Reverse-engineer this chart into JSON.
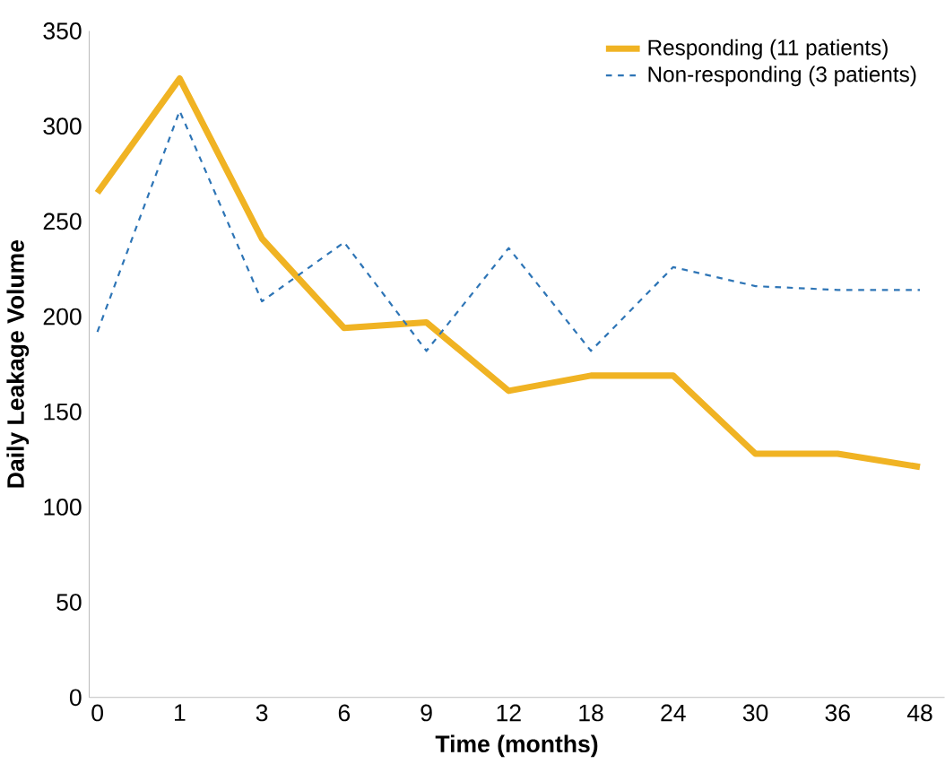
{
  "chart_data": {
    "type": "line",
    "xlabel": "Time (months)",
    "ylabel": "Daily Leakage Volume",
    "categories": [
      "0",
      "1",
      "3",
      "6",
      "9",
      "12",
      "18",
      "24",
      "30",
      "36",
      "48"
    ],
    "series": [
      {
        "name": "Responding (11 patients)",
        "color": "#f0b323",
        "line_style": "solid",
        "values": [
          265,
          325,
          241,
          194,
          197,
          161,
          169,
          169,
          128,
          128,
          121
        ]
      },
      {
        "name": "Non-responding (3 patients)",
        "color": "#2e75b6",
        "line_style": "dashed",
        "values": [
          192,
          308,
          208,
          239,
          182,
          236,
          182,
          226,
          216,
          214,
          214
        ]
      }
    ],
    "ylim": [
      0,
      350
    ],
    "yticks": [
      0,
      50,
      100,
      150,
      200,
      250,
      300,
      350
    ],
    "grid": false,
    "legend": "top right",
    "marker": "none"
  }
}
